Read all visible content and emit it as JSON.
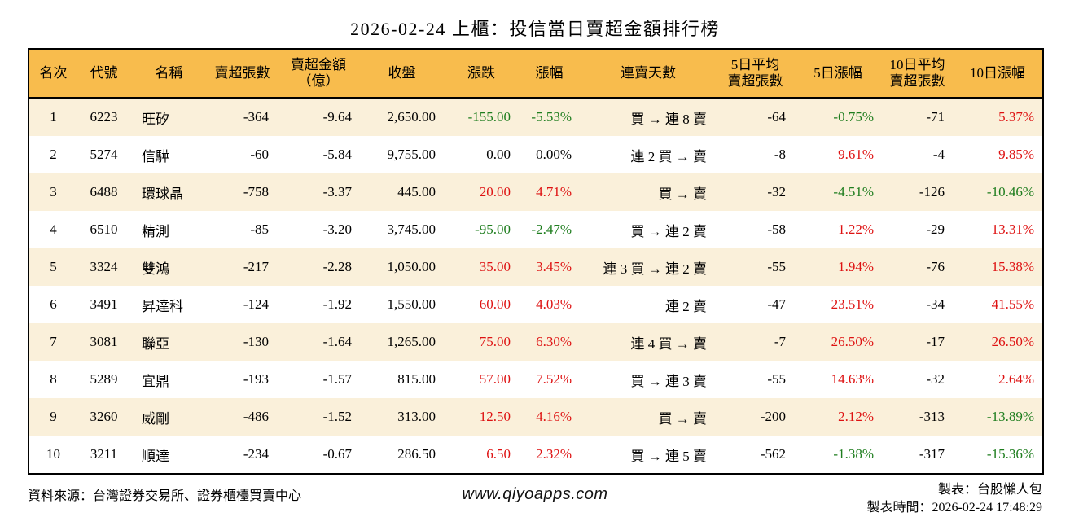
{
  "title": "2026-02-24 上櫃：投信當日賣超金額排行榜",
  "colors": {
    "header_bg": "#F8BC4D",
    "stripe_bg": "#FAF0DA",
    "up_red": "#DE1212",
    "down_green": "#1E7D1E",
    "neutral": "#000000",
    "border": "#000000"
  },
  "table": {
    "columns": [
      {
        "key": "rank",
        "name": "rank",
        "label": [
          "名次"
        ],
        "align": "ac"
      },
      {
        "key": "code",
        "name": "code",
        "label": [
          "代號"
        ],
        "align": "ac"
      },
      {
        "key": "name",
        "name": "name",
        "label": [
          "名稱"
        ],
        "align": "al"
      },
      {
        "key": "sell_shares",
        "name": "sell-shares",
        "label": [
          "賣超張數"
        ],
        "align": "ar"
      },
      {
        "key": "sell_amount",
        "name": "sell-amount",
        "label": [
          "賣超金額",
          "（億）"
        ],
        "align": "ar"
      },
      {
        "key": "close",
        "name": "close",
        "label": [
          "收盤"
        ],
        "align": "ar"
      },
      {
        "key": "change",
        "name": "change",
        "label": [
          "漲跌"
        ],
        "align": "ar",
        "signed": true
      },
      {
        "key": "change_pct",
        "name": "change-pct",
        "label": [
          "漲幅"
        ],
        "align": "ar",
        "signed": true
      },
      {
        "key": "streak",
        "name": "streak",
        "label": [
          "連賣天數"
        ],
        "align": "ar-wide"
      },
      {
        "key": "avg5_shares",
        "name": "avg5-shares",
        "label": [
          "5日平均",
          "賣超張數"
        ],
        "align": "ar"
      },
      {
        "key": "chg5_pct",
        "name": "pct5",
        "label": [
          "5日漲幅"
        ],
        "align": "ar",
        "signed": true
      },
      {
        "key": "avg10_shares",
        "name": "avg10-shares",
        "label": [
          "10日平均",
          "賣超張數"
        ],
        "align": "ar"
      },
      {
        "key": "chg10_pct",
        "name": "pct10",
        "label": [
          "10日漲幅"
        ],
        "align": "ar",
        "signed": true
      }
    ],
    "rows": [
      [
        "1",
        "6223",
        "旺矽",
        "-364",
        "-9.64",
        "2,650.00",
        "-155.00",
        "-5.53%",
        "買 → 連 8 賣",
        "-64",
        "-0.75%",
        "-71",
        "5.37%"
      ],
      [
        "2",
        "5274",
        "信驊",
        "-60",
        "-5.84",
        "9,755.00",
        "0.00",
        "0.00%",
        "連 2 買 → 賣",
        "-8",
        "9.61%",
        "-4",
        "9.85%"
      ],
      [
        "3",
        "6488",
        "環球晶",
        "-758",
        "-3.37",
        "445.00",
        "20.00",
        "4.71%",
        "買 → 賣",
        "-32",
        "-4.51%",
        "-126",
        "-10.46%"
      ],
      [
        "4",
        "6510",
        "精測",
        "-85",
        "-3.20",
        "3,745.00",
        "-95.00",
        "-2.47%",
        "買 → 連 2 賣",
        "-58",
        "1.22%",
        "-29",
        "13.31%"
      ],
      [
        "5",
        "3324",
        "雙鴻",
        "-217",
        "-2.28",
        "1,050.00",
        "35.00",
        "3.45%",
        "連 3 買 → 連 2 賣",
        "-55",
        "1.94%",
        "-76",
        "15.38%"
      ],
      [
        "6",
        "3491",
        "昇達科",
        "-124",
        "-1.92",
        "1,550.00",
        "60.00",
        "4.03%",
        "連 2 賣",
        "-47",
        "23.51%",
        "-34",
        "41.55%"
      ],
      [
        "7",
        "3081",
        "聯亞",
        "-130",
        "-1.64",
        "1,265.00",
        "75.00",
        "6.30%",
        "連 4 買 → 賣",
        "-7",
        "26.50%",
        "-17",
        "26.50%"
      ],
      [
        "8",
        "5289",
        "宜鼎",
        "-193",
        "-1.57",
        "815.00",
        "57.00",
        "7.52%",
        "買 → 連 3 賣",
        "-55",
        "14.63%",
        "-32",
        "2.64%"
      ],
      [
        "9",
        "3260",
        "威剛",
        "-486",
        "-1.52",
        "313.00",
        "12.50",
        "4.16%",
        "買 → 賣",
        "-200",
        "2.12%",
        "-313",
        "-13.89%"
      ],
      [
        "10",
        "3211",
        "順達",
        "-234",
        "-0.67",
        "286.50",
        "6.50",
        "2.32%",
        "買 → 連 5 賣",
        "-562",
        "-1.38%",
        "-317",
        "-15.36%"
      ]
    ]
  },
  "footer": {
    "source": "資料來源：台灣證券交易所、證券櫃檯買賣中心",
    "website": "www.qiyoapps.com",
    "maker": "製表：台股懶人包",
    "made_at": "製表時間：2026-02-24 17:48:29"
  },
  "chart_data": {
    "type": "table",
    "title": "2026-02-24 上櫃：投信當日賣超金額排行榜",
    "columns": [
      "名次",
      "代號",
      "名稱",
      "賣超張數",
      "賣超金額（億）",
      "收盤",
      "漲跌",
      "漲幅",
      "連賣天數",
      "5日平均賣超張數",
      "5日漲幅",
      "10日平均賣超張數",
      "10日漲幅"
    ],
    "rows": [
      [
        "1",
        "6223",
        "旺矽",
        -364,
        -9.64,
        2650.0,
        -155.0,
        "-5.53%",
        "買 → 連 8 賣",
        -64,
        "-0.75%",
        -71,
        "5.37%"
      ],
      [
        "2",
        "5274",
        "信驊",
        -60,
        -5.84,
        9755.0,
        0.0,
        "0.00%",
        "連 2 買 → 賣",
        -8,
        "9.61%",
        -4,
        "9.85%"
      ],
      [
        "3",
        "6488",
        "環球晶",
        -758,
        -3.37,
        445.0,
        20.0,
        "4.71%",
        "買 → 賣",
        -32,
        "-4.51%",
        -126,
        "-10.46%"
      ],
      [
        "4",
        "6510",
        "精測",
        -85,
        -3.2,
        3745.0,
        -95.0,
        "-2.47%",
        "買 → 連 2 賣",
        -58,
        "1.22%",
        -29,
        "13.31%"
      ],
      [
        "5",
        "3324",
        "雙鴻",
        -217,
        -2.28,
        1050.0,
        35.0,
        "3.45%",
        "連 3 買 → 連 2 賣",
        -55,
        "1.94%",
        -76,
        "15.38%"
      ],
      [
        "6",
        "3491",
        "昇達科",
        -124,
        -1.92,
        1550.0,
        60.0,
        "4.03%",
        "連 2 賣",
        -47,
        "23.51%",
        -34,
        "41.55%"
      ],
      [
        "7",
        "3081",
        "聯亞",
        -130,
        -1.64,
        1265.0,
        75.0,
        "6.30%",
        "連 4 買 → 賣",
        -7,
        "26.50%",
        -17,
        "26.50%"
      ],
      [
        "8",
        "5289",
        "宜鼎",
        -193,
        -1.57,
        815.0,
        57.0,
        "7.52%",
        "買 → 連 3 賣",
        -55,
        "14.63%",
        -32,
        "2.64%"
      ],
      [
        "9",
        "3260",
        "威剛",
        -486,
        -1.52,
        313.0,
        12.5,
        "4.16%",
        "買 → 賣",
        -200,
        "2.12%",
        -313,
        "-13.89%"
      ],
      [
        "10",
        "3211",
        "順達",
        -234,
        -0.67,
        286.5,
        6.5,
        "2.32%",
        "買 → 連 5 賣",
        -562,
        "-1.38%",
        -317,
        "-15.36%"
      ]
    ],
    "color_convention": "red = rise, green = decline, black = flat (Taiwan market convention)"
  }
}
